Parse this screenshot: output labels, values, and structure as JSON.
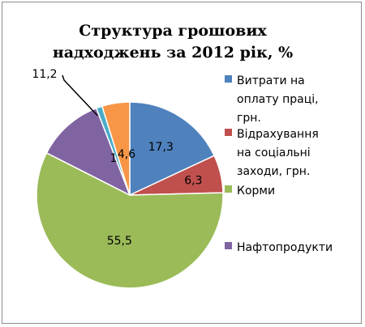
{
  "chart_data": {
    "type": "pie",
    "title": "Структура  грошових надходжень за 2012 рік, %",
    "categories": [
      "Витрати на оплату праці, грн.",
      "Відрахування на соціальні заходи, грн.",
      "Корми",
      "Нафтопродукти",
      "",
      ""
    ],
    "values": [
      17.3,
      6.3,
      55.5,
      11.2,
      1,
      4.6
    ],
    "data_labels": [
      "17,3",
      "6,3",
      "55,5",
      "11,2",
      "1",
      "4,6"
    ],
    "colors": [
      "#4f81bd",
      "#c0504d",
      "#9bbb59",
      "#8064a2",
      "#4bacc6",
      "#f79646"
    ],
    "start_angle_deg": 0,
    "direction": "clockwise",
    "legend_position": "right",
    "legend": [
      {
        "label": "Витрати на оплату праці, грн.",
        "lines": [
          "Витрати на",
          "оплату праці,",
          "грн."
        ],
        "color": "#4f81bd"
      },
      {
        "label": "Відрахування на соціальні заходи, грн.",
        "lines": [
          "Відрахування",
          "на соціальні",
          "заходи, грн."
        ],
        "color": "#c0504d"
      },
      {
        "label": "Корми",
        "lines": [
          "Корми"
        ],
        "color": "#9bbb59"
      },
      {
        "label": "Нафтопродукти",
        "lines": [
          "Нафтопродукти"
        ],
        "color": "#8064a2"
      }
    ]
  }
}
